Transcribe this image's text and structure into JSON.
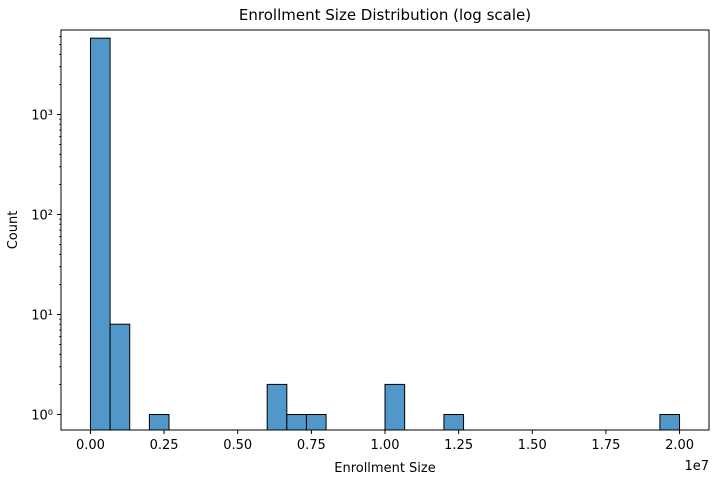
{
  "chart_data": {
    "type": "bar",
    "title": "Enrollment Size Distribution (log scale)",
    "xlabel": "Enrollment Size",
    "ylabel": "Count",
    "x_offset_label": "1e7",
    "x_scale": "linear",
    "y_scale": "log",
    "xlim": [
      -0.1,
      2.1
    ],
    "ylim": [
      0.7,
      7000
    ],
    "x_ticks": [
      0,
      0.25,
      0.5,
      0.75,
      1.0,
      1.25,
      1.5,
      1.75,
      2.0
    ],
    "x_tick_labels": [
      "0.00",
      "0.25",
      "0.50",
      "0.75",
      "1.00",
      "1.25",
      "1.50",
      "1.75",
      "2.00"
    ],
    "y_ticks": [
      1,
      10,
      100,
      1000
    ],
    "y_tick_labels": [
      "10⁰",
      "10¹",
      "10²",
      "10³"
    ],
    "grid": false,
    "legend": "none",
    "bar_color": "#5197c9",
    "edge_color": "#000000",
    "bins": [
      {
        "x0": 0.0,
        "x1": 0.0667,
        "count": 5800
      },
      {
        "x0": 0.0667,
        "x1": 0.1333,
        "count": 8
      },
      {
        "x0": 0.2,
        "x1": 0.2667,
        "count": 1
      },
      {
        "x0": 0.6,
        "x1": 0.6667,
        "count": 2
      },
      {
        "x0": 0.6667,
        "x1": 0.7333,
        "count": 1
      },
      {
        "x0": 0.7333,
        "x1": 0.8,
        "count": 1
      },
      {
        "x0": 1.0,
        "x1": 1.0667,
        "count": 2
      },
      {
        "x0": 1.2,
        "x1": 1.2667,
        "count": 1
      },
      {
        "x0": 1.9333,
        "x1": 2.0,
        "count": 1
      }
    ]
  }
}
